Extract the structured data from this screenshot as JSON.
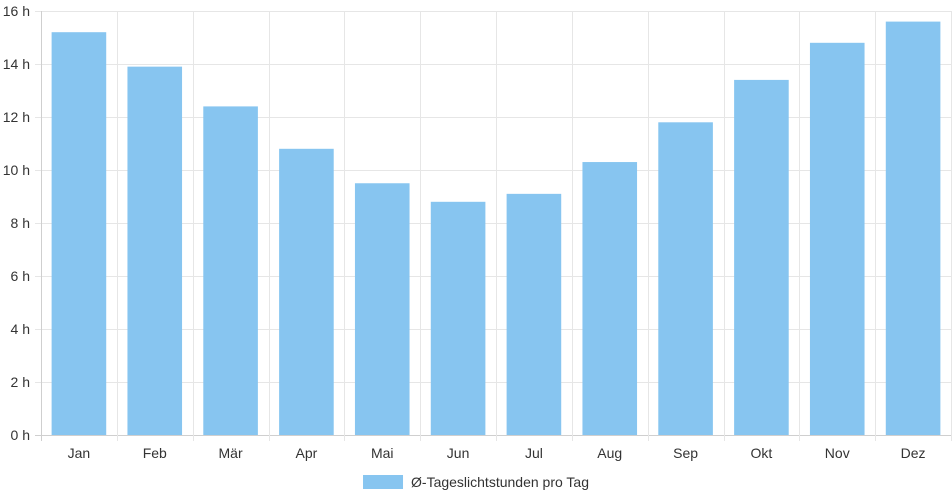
{
  "chart_data": {
    "type": "bar",
    "categories": [
      "Jan",
      "Feb",
      "Mär",
      "Apr",
      "Mai",
      "Jun",
      "Jul",
      "Aug",
      "Sep",
      "Okt",
      "Nov",
      "Dez"
    ],
    "series": [
      {
        "name": "Ø-Tageslichtstunden pro Tag",
        "values": [
          15.2,
          13.9,
          12.4,
          10.8,
          9.5,
          8.8,
          9.1,
          10.3,
          11.8,
          13.4,
          14.8,
          15.6
        ]
      }
    ],
    "ylim": [
      0,
      16
    ],
    "y_ticks": [
      0,
      2,
      4,
      6,
      8,
      10,
      12,
      14,
      16
    ],
    "y_unit": "h",
    "grid": true,
    "legend_position": "bottom",
    "colors": {
      "bar": "#87c5f0",
      "grid": "#e6e6e6",
      "axis": "#cfcfcf",
      "text": "#333333"
    }
  }
}
